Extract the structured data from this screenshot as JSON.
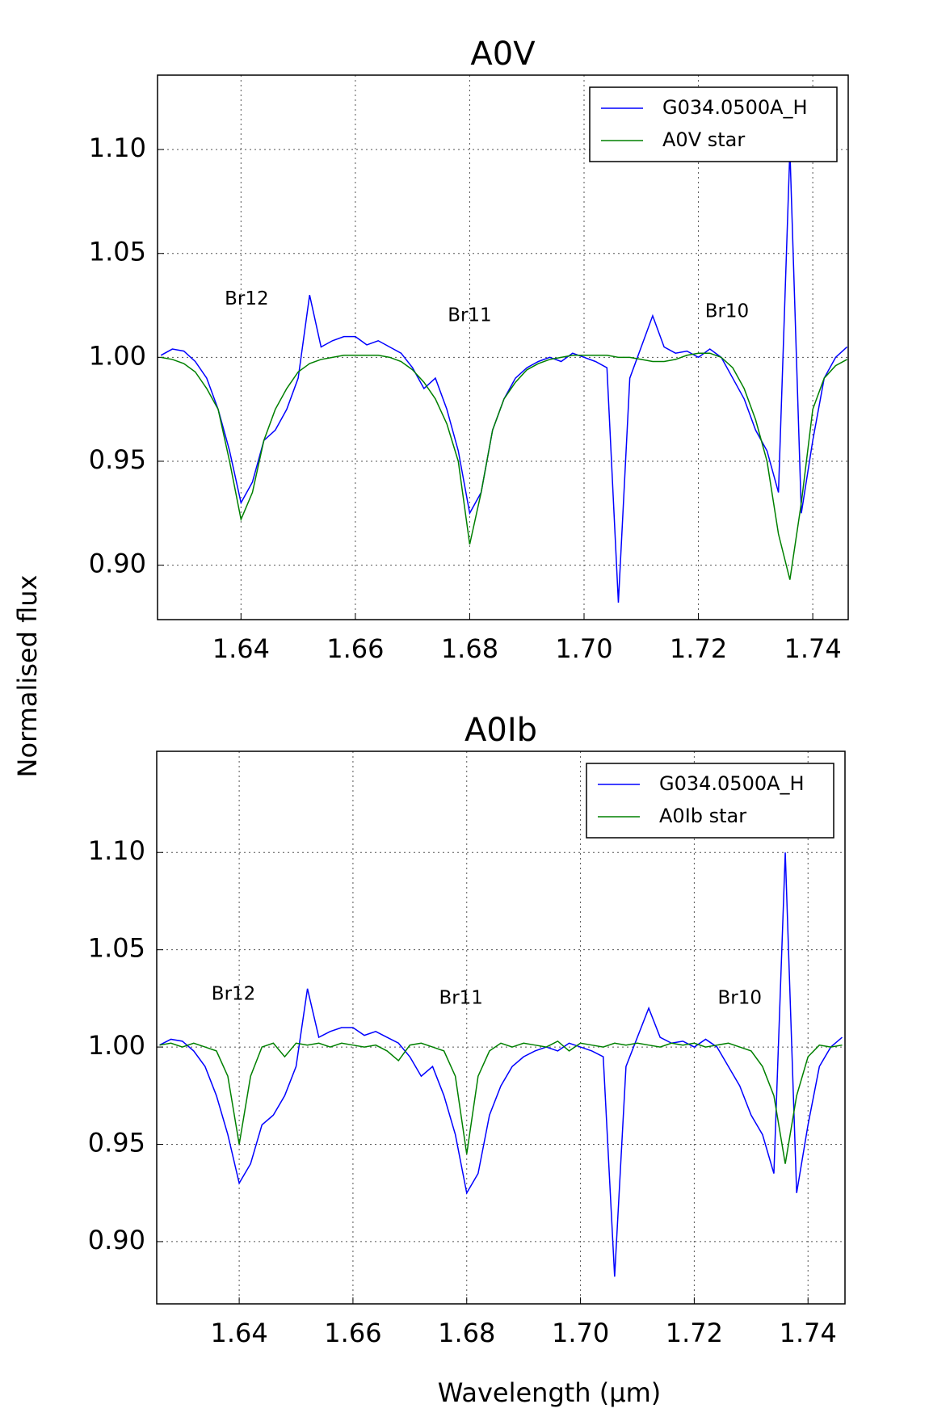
{
  "chart_data": [
    {
      "type": "line",
      "title": "A0V",
      "ylabel": "Normalised flux",
      "x": [
        1.626,
        1.628,
        1.63,
        1.632,
        1.634,
        1.636,
        1.638,
        1.64,
        1.642,
        1.644,
        1.646,
        1.648,
        1.65,
        1.652,
        1.654,
        1.656,
        1.658,
        1.66,
        1.662,
        1.664,
        1.666,
        1.668,
        1.67,
        1.672,
        1.674,
        1.676,
        1.678,
        1.68,
        1.682,
        1.684,
        1.686,
        1.688,
        1.69,
        1.692,
        1.694,
        1.696,
        1.698,
        1.7,
        1.702,
        1.704,
        1.706,
        1.708,
        1.71,
        1.712,
        1.714,
        1.716,
        1.718,
        1.72,
        1.722,
        1.724,
        1.726,
        1.728,
        1.73,
        1.732,
        1.734,
        1.736,
        1.738,
        1.74,
        1.742,
        1.744,
        1.746
      ],
      "series": [
        {
          "name": "G034.0500A_H",
          "color": "#0000ff",
          "values": [
            1.001,
            1.004,
            1.003,
            0.998,
            0.99,
            0.975,
            0.955,
            0.93,
            0.94,
            0.96,
            0.965,
            0.975,
            0.99,
            1.03,
            1.005,
            1.008,
            1.01,
            1.01,
            1.006,
            1.008,
            1.005,
            1.002,
            0.995,
            0.985,
            0.99,
            0.975,
            0.955,
            0.925,
            0.935,
            0.965,
            0.98,
            0.99,
            0.995,
            0.998,
            1.0,
            0.998,
            1.002,
            1.0,
            0.998,
            0.995,
            0.882,
            0.99,
            1.005,
            1.02,
            1.005,
            1.002,
            1.003,
            1.0,
            1.004,
            1.0,
            0.99,
            0.98,
            0.965,
            0.955,
            0.935,
            1.1,
            0.925,
            0.96,
            0.99,
            1.0,
            1.005
          ]
        },
        {
          "name": "A0V star",
          "color": "#008000",
          "values": [
            1.0,
            0.999,
            0.997,
            0.993,
            0.985,
            0.975,
            0.95,
            0.922,
            0.935,
            0.96,
            0.975,
            0.985,
            0.993,
            0.997,
            0.999,
            1.0,
            1.001,
            1.001,
            1.001,
            1.001,
            1.0,
            0.998,
            0.994,
            0.988,
            0.98,
            0.968,
            0.95,
            0.91,
            0.935,
            0.965,
            0.98,
            0.988,
            0.994,
            0.997,
            0.999,
            1.0,
            1.001,
            1.001,
            1.001,
            1.001,
            1.0,
            1.0,
            0.999,
            0.998,
            0.998,
            0.999,
            1.001,
            1.002,
            1.002,
            1.0,
            0.995,
            0.985,
            0.97,
            0.95,
            0.915,
            0.893,
            0.93,
            0.975,
            0.99,
            0.996,
            0.999
          ]
        }
      ],
      "xlim": [
        1.6254,
        1.7462
      ],
      "ylim": [
        0.8738,
        1.1358
      ],
      "xticks": [
        1.64,
        1.66,
        1.68,
        {
          "value": 1.7,
          "label": "1.70"
        },
        1.72,
        1.74
      ],
      "yticks": [
        {
          "value": 0.9,
          "label": "0.90"
        },
        0.95,
        {
          "value": 1.0,
          "label": "1.00"
        },
        1.05,
        {
          "value": 1.1,
          "label": "1.10"
        }
      ],
      "grid": true,
      "legend": "upper right",
      "annotations": [
        {
          "text": "Br12",
          "x": 1.641,
          "y": 1.028
        },
        {
          "text": "Br11",
          "x": 1.68,
          "y": 1.02
        },
        {
          "text": "Br10",
          "x": 1.725,
          "y": 1.022
        }
      ]
    },
    {
      "type": "line",
      "title": "A0Ib",
      "xlabel": "Wavelength (µm)",
      "x": [
        1.626,
        1.628,
        1.63,
        1.632,
        1.634,
        1.636,
        1.638,
        1.64,
        1.642,
        1.644,
        1.646,
        1.648,
        1.65,
        1.652,
        1.654,
        1.656,
        1.658,
        1.66,
        1.662,
        1.664,
        1.666,
        1.668,
        1.67,
        1.672,
        1.674,
        1.676,
        1.678,
        1.68,
        1.682,
        1.684,
        1.686,
        1.688,
        1.69,
        1.692,
        1.694,
        1.696,
        1.698,
        1.7,
        1.702,
        1.704,
        1.706,
        1.708,
        1.71,
        1.712,
        1.714,
        1.716,
        1.718,
        1.72,
        1.722,
        1.724,
        1.726,
        1.728,
        1.73,
        1.732,
        1.734,
        1.736,
        1.738,
        1.74,
        1.742,
        1.744,
        1.746
      ],
      "series": [
        {
          "name": "G034.0500A_H",
          "color": "#0000ff",
          "values": [
            1.001,
            1.004,
            1.003,
            0.998,
            0.99,
            0.975,
            0.955,
            0.93,
            0.94,
            0.96,
            0.965,
            0.975,
            0.99,
            1.03,
            1.005,
            1.008,
            1.01,
            1.01,
            1.006,
            1.008,
            1.005,
            1.002,
            0.995,
            0.985,
            0.99,
            0.975,
            0.955,
            0.925,
            0.935,
            0.965,
            0.98,
            0.99,
            0.995,
            0.998,
            1.0,
            0.998,
            1.002,
            1.0,
            0.998,
            0.995,
            0.882,
            0.99,
            1.005,
            1.02,
            1.005,
            1.002,
            1.003,
            1.0,
            1.004,
            1.0,
            0.99,
            0.98,
            0.965,
            0.955,
            0.935,
            1.1,
            0.925,
            0.96,
            0.99,
            1.0,
            1.005
          ]
        },
        {
          "name": "A0Ib star",
          "color": "#008000",
          "values": [
            1.001,
            1.002,
            1.0,
            1.002,
            1.0,
            0.998,
            0.985,
            0.95,
            0.985,
            1.0,
            1.002,
            0.995,
            1.002,
            1.001,
            1.002,
            1.0,
            1.002,
            1.001,
            1.0,
            1.001,
            0.998,
            0.993,
            1.001,
            1.002,
            1.0,
            0.998,
            0.985,
            0.945,
            0.985,
            0.998,
            1.002,
            1.0,
            1.002,
            1.001,
            1.0,
            1.003,
            0.998,
            1.002,
            1.001,
            1.0,
            1.002,
            1.001,
            1.002,
            1.001,
            1.0,
            1.002,
            1.001,
            1.002,
            1.0,
            1.001,
            1.002,
            1.0,
            0.998,
            0.99,
            0.975,
            0.94,
            0.975,
            0.995,
            1.001,
            1.0,
            1.001
          ]
        }
      ],
      "xlim": [
        1.6255,
        1.7465
      ],
      "ylim": [
        0.868,
        1.152
      ],
      "xticks": [
        1.64,
        1.66,
        1.68,
        {
          "value": 1.7,
          "label": "1.70"
        },
        1.72,
        1.74
      ],
      "yticks": [
        {
          "value": 0.9,
          "label": "0.90"
        },
        0.95,
        {
          "value": 1.0,
          "label": "1.00"
        },
        1.05,
        {
          "value": 1.1,
          "label": "1.10"
        }
      ],
      "grid": true,
      "legend": "upper right",
      "annotations": [
        {
          "text": "Br12",
          "x": 1.639,
          "y": 1.027
        },
        {
          "text": "Br11",
          "x": 1.679,
          "y": 1.025
        },
        {
          "text": "Br10",
          "x": 1.728,
          "y": 1.025
        }
      ]
    }
  ]
}
